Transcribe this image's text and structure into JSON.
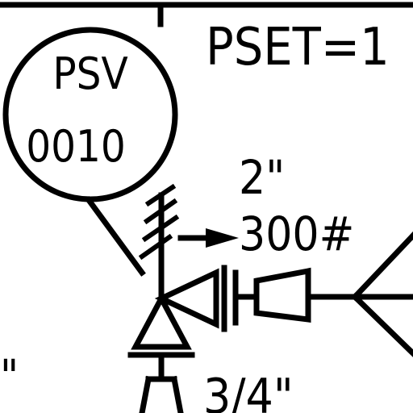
{
  "drawing": {
    "tag": {
      "line1": "PSV",
      "line2": "0010"
    },
    "pset_label": "PSET=1",
    "inlet_size": "2\"",
    "rating": "300#",
    "outlet_size": "3/4\"",
    "left_edge_mark": "\"",
    "colors": {
      "background": "#ffffff",
      "ink": "#000000"
    }
  }
}
